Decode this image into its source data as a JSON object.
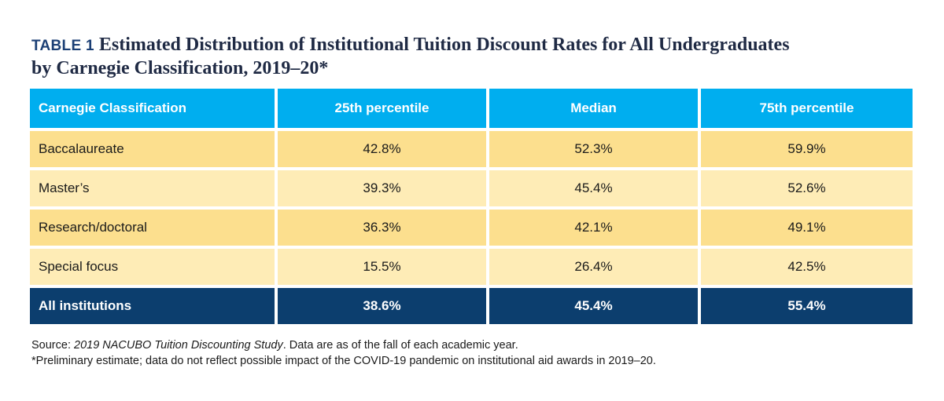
{
  "title": {
    "tag": "TABLE 1",
    "line1": "Estimated Distribution of Institutional Tuition Discount Rates for All Undergraduates",
    "line2": "by Carnegie Classification, 2019–20*"
  },
  "table": {
    "headers": [
      "Carnegie Classification",
      "25th percentile",
      "Median",
      "75th percentile"
    ],
    "rows": [
      {
        "label": "Baccalaureate",
        "values": [
          "42.8%",
          "52.3%",
          "59.9%"
        ]
      },
      {
        "label": "Master’s",
        "values": [
          "39.3%",
          "45.4%",
          "52.6%"
        ]
      },
      {
        "label": "Research/doctoral",
        "values": [
          "36.3%",
          "42.1%",
          "49.1%"
        ]
      },
      {
        "label": "Special focus",
        "values": [
          "15.5%",
          "26.4%",
          "42.5%"
        ]
      }
    ],
    "total": {
      "label": "All institutions",
      "values": [
        "38.6%",
        "45.4%",
        "55.4%"
      ]
    }
  },
  "notes": {
    "source_prefix": "Source: ",
    "source_title": "2019 NACUBO Tuition Discounting Study",
    "source_suffix": ". Data are as of the fall of each academic year.",
    "footnote": "*Preliminary estimate; data do not reflect possible impact of the COVID-19 pandemic on institutional aid awards in 2019–20."
  },
  "colors": {
    "header_bg": "#00aeef",
    "row_dark": "#fcdf8e",
    "row_light": "#feecb6",
    "total_bg": "#0c3e6e",
    "title_tag": "#1b3f75"
  }
}
